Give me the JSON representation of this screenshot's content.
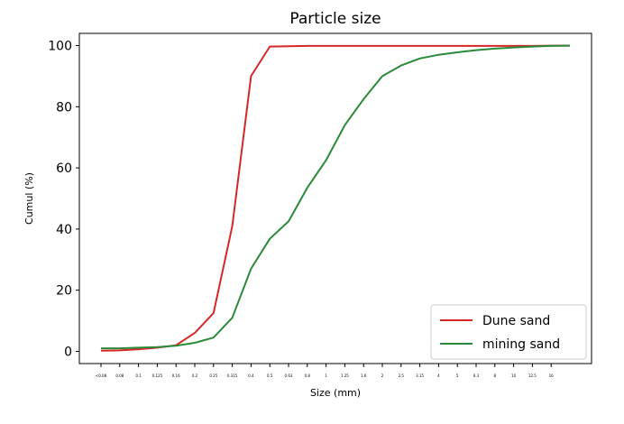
{
  "chart_data": {
    "type": "line",
    "title": "Particle size",
    "xlabel": "Size (mm)",
    "ylabel": "Cumul (%)",
    "ylim": [
      -4,
      104
    ],
    "yticks": [
      "0",
      "20",
      "40",
      "60",
      "80",
      "100"
    ],
    "categories": [
      "<0.08",
      "0.08",
      "0.1",
      "0.125",
      "0.16",
      "0.2",
      "0.25",
      "0.315",
      "0.4",
      "0.5",
      "0.63",
      "0.8",
      "1",
      "1.25",
      "1.6",
      "2",
      "2.5",
      "3.15",
      "4",
      "5",
      "6.3",
      "8",
      "10",
      "12.5",
      "16",
      ""
    ],
    "xtick_labels": [
      "<0.08",
      "0.08",
      "0.1",
      "0.125",
      "0.16",
      "0.2",
      "0.25",
      "0.315",
      "0.4",
      "0.5",
      "0.63",
      "0.8",
      "1",
      "1.25",
      "1.6",
      "2",
      "2.5",
      "3.15",
      "4",
      "5",
      "6.3",
      "8",
      "10",
      "12.5",
      "16"
    ],
    "legend_position": "lower-right",
    "grid": false,
    "series": [
      {
        "name": "Dune sand",
        "color": "#d62728",
        "values": [
          0.2,
          0.3,
          0.7,
          1.2,
          2.0,
          6.0,
          12.5,
          41.0,
          90.0,
          99.7,
          99.8,
          99.9,
          99.9,
          99.9,
          99.9,
          99.9,
          99.9,
          99.9,
          99.9,
          99.9,
          99.9,
          99.9,
          99.9,
          99.9,
          100.0,
          100.0
        ]
      },
      {
        "name": "mining sand",
        "color": "#2a8a3a",
        "values": [
          1.0,
          1.0,
          1.2,
          1.4,
          1.8,
          2.8,
          4.5,
          11.0,
          27.0,
          36.8,
          42.5,
          53.5,
          62.5,
          74.0,
          82.5,
          90.0,
          93.5,
          95.8,
          97.0,
          97.8,
          98.5,
          99.0,
          99.4,
          99.7,
          99.9,
          100.0
        ]
      }
    ]
  }
}
